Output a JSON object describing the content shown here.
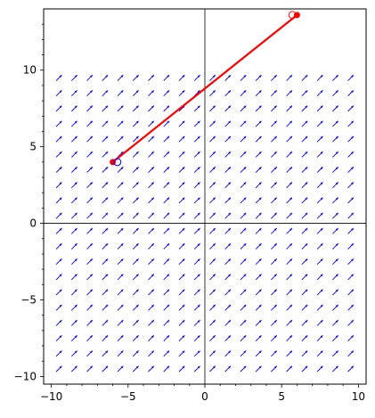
{
  "chart_data": {
    "type": "line",
    "title": "",
    "xlabel": "",
    "ylabel": "",
    "xlim": [
      -10.5,
      10.5
    ],
    "ylim": [
      -10.5,
      14.0
    ],
    "xticks": [
      {
        "value": -10,
        "label": "−10"
      },
      {
        "value": -5,
        "label": "−5"
      },
      {
        "value": 0,
        "label": "0"
      },
      {
        "value": 5,
        "label": "5"
      },
      {
        "value": 10,
        "label": "10"
      }
    ],
    "yticks": [
      {
        "value": -10,
        "label": "−10"
      },
      {
        "value": -5,
        "label": "−5"
      },
      {
        "value": 0,
        "label": "0"
      },
      {
        "value": 5,
        "label": "5"
      },
      {
        "value": 10,
        "label": "10"
      }
    ],
    "grid": false,
    "axes_through_origin": true,
    "vector_field": {
      "x_range": [
        -10,
        10
      ],
      "y_range": [
        -10,
        10
      ],
      "count": 20,
      "direction": [
        1,
        1
      ],
      "color": "#0000ff"
    },
    "series": [
      {
        "x": [
          -6.0,
          6.0
        ],
        "y": [
          4.0,
          13.6
        ],
        "color": "#ff0000"
      }
    ],
    "markers": [
      {
        "x": -6.0,
        "y": 4.0,
        "style": "filled",
        "color": "#ff0000"
      },
      {
        "x": -5.7,
        "y": 4.0,
        "style": "hollow",
        "color": "#0000ff"
      },
      {
        "x": 6.0,
        "y": 13.6,
        "style": "filled",
        "color": "#ff0000"
      },
      {
        "x": 5.7,
        "y": 13.6,
        "style": "hollow",
        "color": "#ff0000"
      }
    ]
  }
}
